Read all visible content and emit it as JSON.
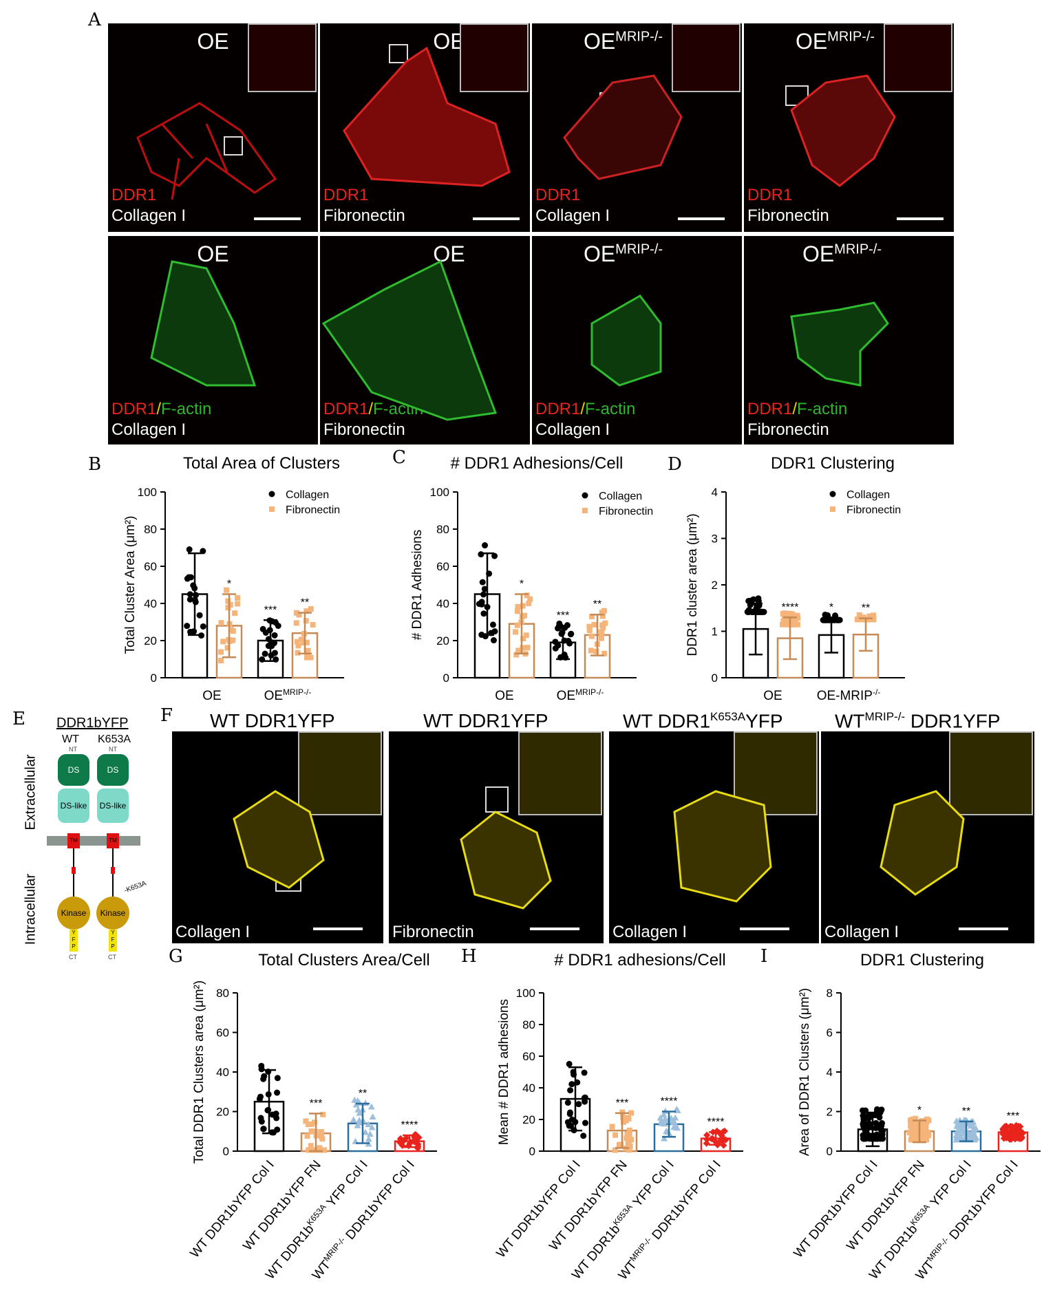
{
  "panel_letters": {
    "A": "A",
    "B": "B",
    "C": "C",
    "D": "D",
    "E": "E",
    "F": "F",
    "G": "G",
    "H": "H",
    "I": "I"
  },
  "panelA": {
    "top": [
      {
        "title": "OE",
        "sup": "",
        "stain": "DDR1",
        "substrate": "Collagen I"
      },
      {
        "title": "OE",
        "sup": "",
        "stain": "DDR1",
        "substrate": "Fibronectin"
      },
      {
        "title": "OE",
        "sup": "MRIP-/-",
        "stain": "DDR1",
        "substrate": "Collagen I"
      },
      {
        "title": "OE",
        "sup": "MRIP-/-",
        "stain": "DDR1",
        "substrate": "Fibronectin"
      }
    ],
    "bottom": [
      {
        "title": "OE",
        "sup": "",
        "stain1": "DDR1",
        "sep": "/",
        "stain2": "F-actin",
        "substrate": "Collagen I"
      },
      {
        "title": "OE",
        "sup": "",
        "stain1": "DDR1",
        "sep": "/",
        "stain2": "F-actin",
        "substrate": "Fibronectin"
      },
      {
        "title": "OE",
        "sup": "MRIP-/-",
        "stain1": "DDR1",
        "sep": "/",
        "stain2": "F-actin",
        "substrate": "Collagen I"
      },
      {
        "title": "OE",
        "sup": "MRIP-/-",
        "stain1": "DDR1",
        "sep": "/",
        "stain2": "F-actin",
        "substrate": "Fibronectin"
      }
    ]
  },
  "panelE": {
    "title": "DDR1bYFP",
    "col1": "WT",
    "col2": "K653A",
    "nt": "NT",
    "ct": "CT",
    "ds": "DS",
    "dslike": "DS-like",
    "tm": "TM",
    "kinase": "Kinase",
    "yfp": "Y F P",
    "mutation": "-K653A",
    "extracellular": "Extracellular",
    "intracellular": "Intracellular"
  },
  "panelF": [
    {
      "title": "WT DDR1YFP",
      "sup": "",
      "post": "",
      "substrate": "Collagen I"
    },
    {
      "title": "WT DDR1YFP",
      "sup": "",
      "post": "",
      "substrate": "Fibronectin"
    },
    {
      "title": "WT DDR1",
      "sup": "K653A",
      "post": "YFP",
      "substrate": "Collagen I"
    },
    {
      "title": "WT",
      "sup": "MRIP-/-",
      "post": " DDR1YFP",
      "substrate": "Collagen I"
    }
  ],
  "colors": {
    "collagen": "#000000",
    "fibronectin": "#f5b57a",
    "k653a": "#9dbfdc",
    "mrip": "#e8241c",
    "k653a_edge": "#2a6f9e",
    "fn_edge": "#c58a55"
  },
  "chart_data": [
    {
      "id": "B",
      "type": "bar",
      "title": "Total Area of  Clusters",
      "ylabel": "Total Cluster Area  (μm²)",
      "ylim": [
        0,
        100
      ],
      "yticks": [
        0,
        20,
        40,
        60,
        80,
        100
      ],
      "groups": [
        "OE",
        "OE^MRIP-/-"
      ],
      "legend": [
        "Collagen",
        "Fibronectin"
      ],
      "series": [
        {
          "name": "Collagen",
          "values": [
            45,
            20
          ],
          "sd": [
            22,
            11
          ]
        },
        {
          "name": "Fibronectin",
          "values": [
            28,
            24
          ],
          "sd": [
            17,
            11
          ]
        }
      ],
      "significance": {
        "Collagen": [
          "",
          "***"
        ],
        "Fibronectin": [
          "*",
          "**"
        ]
      }
    },
    {
      "id": "C",
      "type": "bar",
      "title": "# DDR1 Adhesions/Cell",
      "ylabel": "# DDR1 Adhesions",
      "ylim": [
        0,
        100
      ],
      "yticks": [
        0,
        20,
        40,
        60,
        80,
        100
      ],
      "groups": [
        "OE",
        "OE^MRIP-/-"
      ],
      "legend": [
        "Collagen",
        "Fibronectin"
      ],
      "series": [
        {
          "name": "Collagen",
          "values": [
            45,
            19
          ],
          "sd": [
            22,
            9
          ]
        },
        {
          "name": "Fibronectin",
          "values": [
            29,
            23
          ],
          "sd": [
            16,
            11
          ]
        }
      ],
      "significance": {
        "Collagen": [
          "",
          "***"
        ],
        "Fibronectin": [
          "*",
          "**"
        ]
      }
    },
    {
      "id": "D",
      "type": "bar",
      "title": "DDR1 Clustering",
      "ylabel": "DDR1 cluster area (μm²)",
      "ylim": [
        0,
        4
      ],
      "yticks": [
        0,
        1,
        2,
        3,
        4
      ],
      "groups": [
        "OE",
        "OE-MRIP^-/-"
      ],
      "legend": [
        "Collagen",
        "Fibronectin"
      ],
      "series": [
        {
          "name": "Collagen",
          "values": [
            1.05,
            0.92
          ],
          "sd": [
            0.55,
            0.38
          ]
        },
        {
          "name": "Fibronectin",
          "values": [
            0.85,
            0.93
          ],
          "sd": [
            0.45,
            0.35
          ]
        }
      ],
      "significance": {
        "Collagen": [
          "",
          "*"
        ],
        "Fibronectin": [
          "****",
          "**"
        ]
      }
    },
    {
      "id": "G",
      "type": "bar",
      "title": "Total Clusters Area/Cell",
      "ylabel": "Total DDR1 Clusters area (μm²)",
      "ylim": [
        0,
        80
      ],
      "yticks": [
        0,
        20,
        40,
        60,
        80
      ],
      "categories": [
        "WT DDR1bYFP Col I",
        "WT DDR1bYFP FN",
        "WT DDR1b^K653A YFP Col I",
        "WT^MRIP-/- DDR1bYFP Col I"
      ],
      "values": [
        25,
        9,
        14,
        5
      ],
      "sd": [
        16,
        10,
        10,
        3
      ],
      "significance": [
        "",
        "***",
        "**",
        "****"
      ]
    },
    {
      "id": "H",
      "type": "bar",
      "title": "# DDR1 adhesions/Cell",
      "ylabel": "Mean # DDR1 adhesions",
      "ylim": [
        0,
        100
      ],
      "yticks": [
        0,
        20,
        40,
        60,
        80,
        100
      ],
      "categories": [
        "WT DDR1bYFP Col I",
        "WT DDR1bYFP FN",
        "WT DDR1b^K653A YFP Col I",
        "WT^MRIP-/- DDR1bYFP Col I"
      ],
      "values": [
        33,
        13,
        17,
        8
      ],
      "sd": [
        20,
        11,
        8,
        4
      ],
      "significance": [
        "",
        "***",
        "****",
        "****"
      ]
    },
    {
      "id": "I",
      "type": "bar",
      "title": "DDR1 Clustering",
      "ylabel": "Area of DDR1 Clusters (μm²)",
      "ylim": [
        0,
        8
      ],
      "yticks": [
        0,
        2,
        4,
        6,
        8
      ],
      "categories": [
        "WT DDR1bYFP Col I",
        "WT DDR1bYFP FN",
        "WT DDR1b^K653A YFP Col I",
        "WT^MRIP-/- DDR1bYFP Col I"
      ],
      "values": [
        1.1,
        1.0,
        1.0,
        0.95
      ],
      "sd": [
        0.85,
        0.55,
        0.5,
        0.3
      ],
      "significance": [
        "",
        "*",
        "**",
        "***"
      ]
    }
  ]
}
